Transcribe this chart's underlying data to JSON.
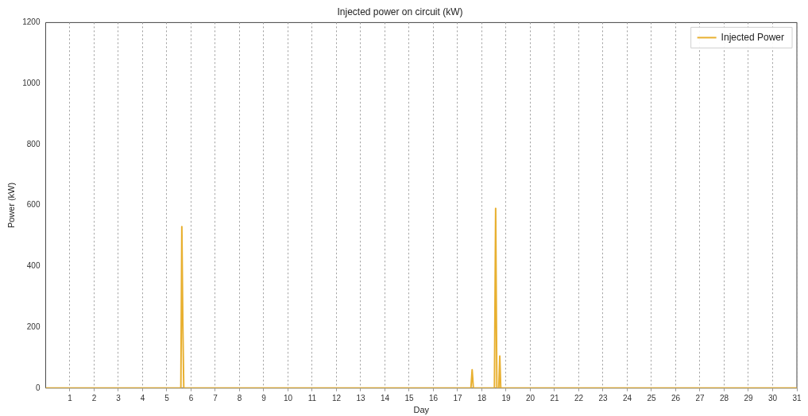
{
  "chart_data": {
    "type": "line",
    "title": "Injected power on circuit (kW)",
    "xlabel": "Day",
    "ylabel": "Power (kW)",
    "x": [
      0,
      5.58,
      5.62,
      5.66,
      5.7,
      17.55,
      17.6,
      17.65,
      18.52,
      18.57,
      18.62,
      18.7,
      18.74,
      18.78,
      31
    ],
    "series": [
      {
        "name": "Injected Power",
        "color": "#e8b030",
        "values": [
          0,
          0,
          530,
          215,
          0,
          0,
          60,
          0,
          0,
          590,
          0,
          0,
          105,
          0,
          0
        ]
      }
    ],
    "xlim": [
      0,
      31
    ],
    "xticks": [
      1,
      2,
      3,
      4,
      5,
      6,
      7,
      8,
      9,
      10,
      11,
      12,
      13,
      14,
      15,
      16,
      17,
      18,
      19,
      20,
      21,
      22,
      23,
      24,
      25,
      26,
      27,
      28,
      29,
      30,
      31
    ],
    "ylim": [
      0,
      1200
    ],
    "yticks": [
      0,
      200,
      400,
      600,
      800,
      1000,
      1200
    ],
    "grid": "x",
    "legend": "top right",
    "marker": "none",
    "line_style": "solid"
  }
}
